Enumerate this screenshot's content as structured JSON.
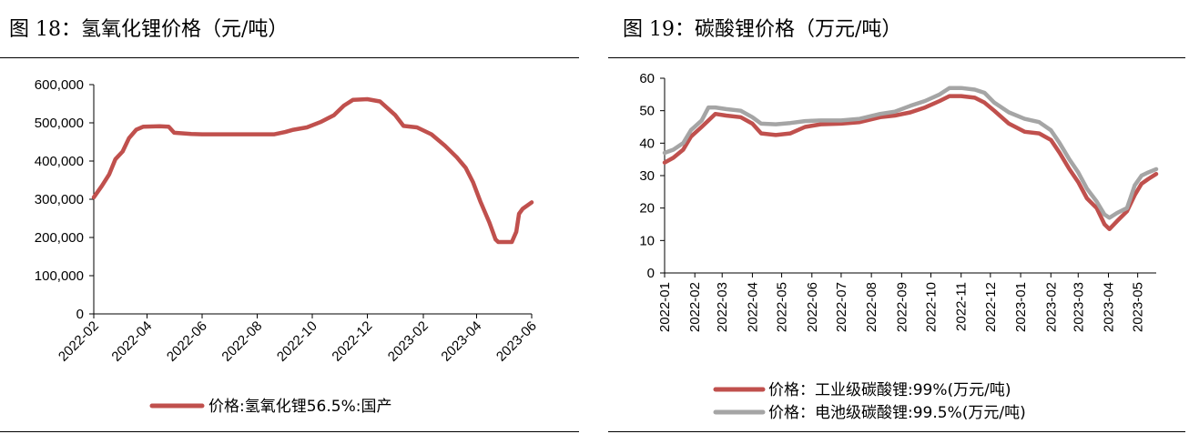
{
  "figures": [
    {
      "title": "图 18：氢氧化锂价格（元/吨）"
    },
    {
      "title": "图 19：碳酸锂价格（万元/吨）"
    }
  ],
  "chart_data": [
    {
      "type": "line",
      "title": "图 18：氢氧化锂价格（元/吨）",
      "xlabel": "",
      "ylabel": "",
      "x_tick_labels": [
        "2022-02",
        "2022-04",
        "2022-06",
        "2022-08",
        "2022-10",
        "2022-12",
        "2023-02",
        "2023-04",
        "2023-06"
      ],
      "y_tick_labels": [
        "0",
        "100,000",
        "200,000",
        "300,000",
        "400,000",
        "500,000",
        "600,000"
      ],
      "ylim": [
        0,
        600000
      ],
      "xlim": [
        "2022-02-01",
        "2023-06-01"
      ],
      "grid": false,
      "legend_position": "bottom",
      "series": [
        {
          "name": "价格:氢氧化锂56.5%:国产",
          "color": "#c0504d",
          "points": [
            [
              "2022-02-01",
              305000
            ],
            [
              "2022-02-10",
              335000
            ],
            [
              "2022-02-18",
              365000
            ],
            [
              "2022-02-25",
              405000
            ],
            [
              "2022-03-05",
              425000
            ],
            [
              "2022-03-12",
              460000
            ],
            [
              "2022-03-20",
              482000
            ],
            [
              "2022-03-28",
              490000
            ],
            [
              "2022-04-15",
              491000
            ],
            [
              "2022-04-25",
              490000
            ],
            [
              "2022-05-01",
              474000
            ],
            [
              "2022-05-20",
              471000
            ],
            [
              "2022-06-01",
              470000
            ],
            [
              "2022-07-01",
              470000
            ],
            [
              "2022-08-01",
              470000
            ],
            [
              "2022-08-20",
              470000
            ],
            [
              "2022-09-01",
              476000
            ],
            [
              "2022-09-10",
              482000
            ],
            [
              "2022-09-25",
              488000
            ],
            [
              "2022-10-10",
              502000
            ],
            [
              "2022-10-25",
              520000
            ],
            [
              "2022-11-05",
              545000
            ],
            [
              "2022-11-15",
              560000
            ],
            [
              "2022-12-01",
              562000
            ],
            [
              "2022-12-15",
              556000
            ],
            [
              "2023-01-01",
              520000
            ],
            [
              "2023-01-10",
              492000
            ],
            [
              "2023-01-25",
              488000
            ],
            [
              "2023-02-10",
              470000
            ],
            [
              "2023-02-25",
              440000
            ],
            [
              "2023-03-10",
              410000
            ],
            [
              "2023-03-20",
              382000
            ],
            [
              "2023-03-28",
              345000
            ],
            [
              "2023-04-05",
              295000
            ],
            [
              "2023-04-15",
              240000
            ],
            [
              "2023-04-22",
              195000
            ],
            [
              "2023-04-25",
              188000
            ],
            [
              "2023-05-10",
              188000
            ],
            [
              "2023-05-15",
              215000
            ],
            [
              "2023-05-18",
              262000
            ],
            [
              "2023-05-22",
              275000
            ],
            [
              "2023-06-01",
              292000
            ]
          ]
        }
      ]
    },
    {
      "type": "line",
      "title": "图 19：碳酸锂价格（万元/吨）",
      "xlabel": "",
      "ylabel": "",
      "x_tick_labels": [
        "2022-01",
        "2022-02",
        "2022-03",
        "2022-04",
        "2022-05",
        "2022-06",
        "2022-07",
        "2022-08",
        "2022-09",
        "2022-10",
        "2022-11",
        "2022-12",
        "2023-01",
        "2023-02",
        "2023-03",
        "2023-04",
        "2023-05"
      ],
      "y_tick_labels": [
        "0",
        "10",
        "20",
        "30",
        "40",
        "50",
        "60"
      ],
      "ylim": [
        0,
        60
      ],
      "xlim": [
        "2022-01-01",
        "2023-05-20"
      ],
      "grid": false,
      "legend_position": "bottom",
      "series": [
        {
          "name": "价格：工业级碳酸锂:99%(万元/吨)",
          "color": "#c0504d",
          "points": [
            [
              "2022-01-01",
              34
            ],
            [
              "2022-01-10",
              35.5
            ],
            [
              "2022-01-20",
              38
            ],
            [
              "2022-01-28",
              42
            ],
            [
              "2022-02-08",
              45
            ],
            [
              "2022-02-15",
              47
            ],
            [
              "2022-02-22",
              49
            ],
            [
              "2022-03-05",
              48.5
            ],
            [
              "2022-03-20",
              48
            ],
            [
              "2022-04-01",
              46
            ],
            [
              "2022-04-10",
              43
            ],
            [
              "2022-04-25",
              42.5
            ],
            [
              "2022-05-10",
              43
            ],
            [
              "2022-05-25",
              45
            ],
            [
              "2022-06-10",
              45.8
            ],
            [
              "2022-07-01",
              46
            ],
            [
              "2022-07-20",
              46.5
            ],
            [
              "2022-08-10",
              48
            ],
            [
              "2022-08-25",
              48.5
            ],
            [
              "2022-09-10",
              49.5
            ],
            [
              "2022-09-25",
              51
            ],
            [
              "2022-10-10",
              53
            ],
            [
              "2022-10-20",
              54.5
            ],
            [
              "2022-11-01",
              54.5
            ],
            [
              "2022-11-15",
              54
            ],
            [
              "2022-11-25",
              52.5
            ],
            [
              "2022-12-05",
              50
            ],
            [
              "2022-12-20",
              46
            ],
            [
              "2023-01-05",
              43.5
            ],
            [
              "2023-01-20",
              43
            ],
            [
              "2023-02-01",
              41
            ],
            [
              "2023-02-10",
              37
            ],
            [
              "2023-02-20",
              32
            ],
            [
              "2023-03-01",
              28
            ],
            [
              "2023-03-10",
              23
            ],
            [
              "2023-03-20",
              20
            ],
            [
              "2023-03-28",
              15
            ],
            [
              "2023-04-02",
              13.5
            ],
            [
              "2023-04-10",
              16
            ],
            [
              "2023-04-20",
              19
            ],
            [
              "2023-04-28",
              24
            ],
            [
              "2023-05-05",
              27.5
            ],
            [
              "2023-05-12",
              29
            ],
            [
              "2023-05-20",
              30.5
            ]
          ]
        },
        {
          "name": "价格：电池级碳酸锂:99.5%(万元/吨)",
          "color": "#a5a5a5",
          "points": [
            [
              "2022-01-01",
              37
            ],
            [
              "2022-01-10",
              38
            ],
            [
              "2022-01-20",
              40
            ],
            [
              "2022-01-28",
              44
            ],
            [
              "2022-02-08",
              47
            ],
            [
              "2022-02-15",
              51
            ],
            [
              "2022-02-22",
              51
            ],
            [
              "2022-03-05",
              50.5
            ],
            [
              "2022-03-20",
              50
            ],
            [
              "2022-04-01",
              48
            ],
            [
              "2022-04-10",
              46
            ],
            [
              "2022-04-25",
              45.8
            ],
            [
              "2022-05-10",
              46.2
            ],
            [
              "2022-05-25",
              46.8
            ],
            [
              "2022-06-10",
              47
            ],
            [
              "2022-07-01",
              47
            ],
            [
              "2022-07-20",
              47.5
            ],
            [
              "2022-08-10",
              49
            ],
            [
              "2022-08-25",
              49.7
            ],
            [
              "2022-09-10",
              51.5
            ],
            [
              "2022-09-25",
              53
            ],
            [
              "2022-10-10",
              55
            ],
            [
              "2022-10-20",
              57
            ],
            [
              "2022-11-01",
              57
            ],
            [
              "2022-11-15",
              56.5
            ],
            [
              "2022-11-25",
              55.5
            ],
            [
              "2022-12-05",
              52.5
            ],
            [
              "2022-12-20",
              49.5
            ],
            [
              "2023-01-05",
              47.5
            ],
            [
              "2023-01-20",
              46.5
            ],
            [
              "2023-02-01",
              44
            ],
            [
              "2023-02-10",
              40
            ],
            [
              "2023-02-20",
              35
            ],
            [
              "2023-03-01",
              31
            ],
            [
              "2023-03-10",
              26
            ],
            [
              "2023-03-20",
              22
            ],
            [
              "2023-03-28",
              18
            ],
            [
              "2023-04-02",
              17
            ],
            [
              "2023-04-10",
              18.5
            ],
            [
              "2023-04-20",
              20
            ],
            [
              "2023-04-28",
              27
            ],
            [
              "2023-05-05",
              30
            ],
            [
              "2023-05-12",
              31
            ],
            [
              "2023-05-20",
              32
            ]
          ]
        }
      ]
    }
  ]
}
